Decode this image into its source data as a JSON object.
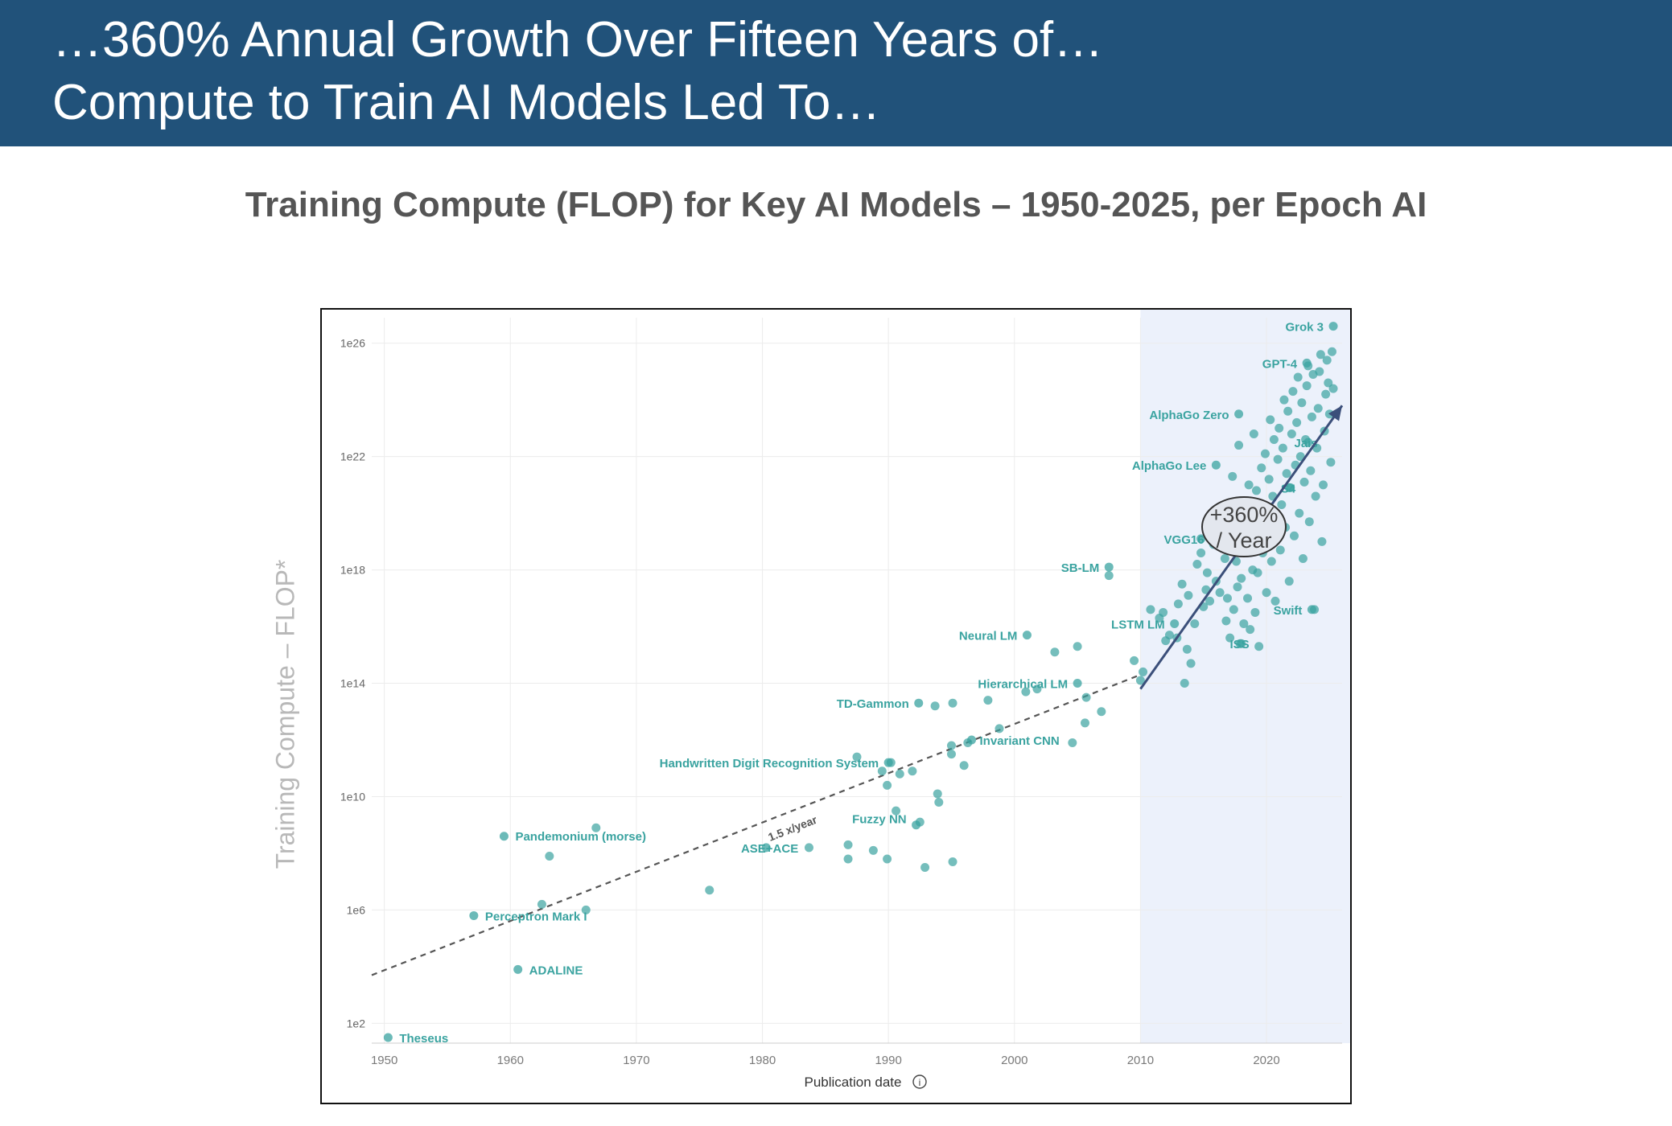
{
  "header": {
    "line1": "…360% Annual Growth Over Fifteen Years of…",
    "line2": "Compute to Train AI Models Led To…"
  },
  "subtitle": "Training Compute (FLOP) for Key AI Models – 1950-2025, per Epoch AI",
  "colors": {
    "banner": "#21527a",
    "point": "#3aa3a0",
    "highlight_region": "#ecf1fb",
    "growth_arrow": "#3b4f7a"
  },
  "chart_data": {
    "type": "scatter",
    "ylabel": "Training Compute – FLOP*",
    "xlabel": "Publication date",
    "y_scale": "log",
    "xlim": [
      1949,
      2026
    ],
    "ylim_log10": [
      1.3,
      26.9
    ],
    "x_ticks": [
      {
        "value": 1950,
        "label": "1950"
      },
      {
        "value": 1960,
        "label": "1960"
      },
      {
        "value": 1970,
        "label": "1970"
      },
      {
        "value": 1980,
        "label": "1980"
      },
      {
        "value": 1990,
        "label": "1990"
      },
      {
        "value": 2000,
        "label": "2000"
      },
      {
        "value": 2010,
        "label": "2010"
      },
      {
        "value": 2020,
        "label": "2020"
      }
    ],
    "y_ticks": [
      {
        "log10": 26,
        "label": "1e26"
      },
      {
        "log10": 22,
        "label": "1e22"
      },
      {
        "log10": 18,
        "label": "1e18"
      },
      {
        "log10": 14,
        "label": "1e14"
      },
      {
        "log10": 10,
        "label": "1e10"
      },
      {
        "log10": 6,
        "label": "1e6"
      },
      {
        "log10": 2,
        "label": "1e2"
      }
    ],
    "grid": true,
    "highlight_region": {
      "x_from": 2010,
      "x_to": 2026
    },
    "trend_line": {
      "label": "1.5 x/year",
      "from": [
        1949,
        3.7
      ],
      "to": [
        2010,
        14.3
      ]
    },
    "growth_arrow": {
      "from": [
        2010,
        13.8
      ],
      "to": [
        2026,
        23.8
      ]
    },
    "growth_callout": {
      "line1": "+360%",
      "line2": "/ Year"
    },
    "labeled_points": [
      {
        "name": "Theseus",
        "x": 1950.3,
        "log10": 1.5
      },
      {
        "name": "ADALINE",
        "x": 1960.6,
        "log10": 3.9
      },
      {
        "name": "Perceptron Mark I",
        "x": 1957.1,
        "log10": 5.8
      },
      {
        "name": "Pandemonium (morse)",
        "x": 1959.5,
        "log10": 8.6
      },
      {
        "name": "ASE+ACE",
        "x": 1980.3,
        "log10": 8.2
      },
      {
        "name": "Fuzzy NN",
        "x": 1992.2,
        "log10": 9.0
      },
      {
        "name": "Handwritten Digit Recognition System",
        "x": 1990.0,
        "log10": 11.2
      },
      {
        "name": "Invariant CNN",
        "x": 1996.6,
        "log10": 12.0
      },
      {
        "name": "TD-Gammon",
        "x": 1992.4,
        "log10": 13.3
      },
      {
        "name": "Hierarchical LM",
        "x": 2005.0,
        "log10": 14.0
      },
      {
        "name": "Neural LM",
        "x": 2001.0,
        "log10": 15.7
      },
      {
        "name": "LSTM LM",
        "x": 2012.7,
        "log10": 16.1
      },
      {
        "name": "SB-LM",
        "x": 2007.5,
        "log10": 18.1
      },
      {
        "name": "VGG16",
        "x": 2014.8,
        "log10": 19.1
      },
      {
        "name": "AlphaGo Lee",
        "x": 2016.0,
        "log10": 21.7
      },
      {
        "name": "AlphaGo Zero",
        "x": 2017.8,
        "log10": 23.5
      },
      {
        "name": "GPT-4",
        "x": 2023.2,
        "log10": 25.3
      },
      {
        "name": "Grok 3",
        "x": 2025.3,
        "log10": 26.6
      },
      {
        "name": "Swift",
        "x": 2023.6,
        "log10": 16.6
      },
      {
        "name": "ISS",
        "x": 2018.0,
        "log10": 15.4
      },
      {
        "name": "Jais",
        "x": 2023.3,
        "log10": 22.5
      },
      {
        "name": "S4",
        "x": 2021.8,
        "log10": 20.9
      }
    ],
    "points": [
      [
        1962.5,
        6.2
      ],
      [
        1963.1,
        7.9
      ],
      [
        1966.0,
        6.0
      ],
      [
        1966.8,
        8.9
      ],
      [
        1975.8,
        6.7
      ],
      [
        1983.7,
        8.2
      ],
      [
        1986.8,
        7.8
      ],
      [
        1986.8,
        8.3
      ],
      [
        1987.5,
        11.4
      ],
      [
        1988.8,
        8.1
      ],
      [
        1989.5,
        10.9
      ],
      [
        1989.9,
        7.8
      ],
      [
        1989.9,
        10.4
      ],
      [
        1990.2,
        11.2
      ],
      [
        1990.6,
        9.5
      ],
      [
        1990.9,
        10.8
      ],
      [
        1991.9,
        10.9
      ],
      [
        1992.5,
        9.1
      ],
      [
        1992.9,
        7.5
      ],
      [
        1993.7,
        13.2
      ],
      [
        1993.9,
        10.1
      ],
      [
        1994.0,
        9.8
      ],
      [
        1995.0,
        11.8
      ],
      [
        1995.0,
        11.5
      ],
      [
        1995.1,
        7.7
      ],
      [
        1995.1,
        13.3
      ],
      [
        1996.0,
        11.1
      ],
      [
        1996.3,
        11.9
      ],
      [
        1997.9,
        13.4
      ],
      [
        1998.8,
        12.4
      ],
      [
        2000.9,
        13.7
      ],
      [
        2001.8,
        13.8
      ],
      [
        2003.2,
        15.1
      ],
      [
        2004.6,
        11.9
      ],
      [
        2005.0,
        15.3
      ],
      [
        2005.6,
        12.6
      ],
      [
        2005.7,
        13.5
      ],
      [
        2006.9,
        13.0
      ],
      [
        2007.5,
        17.8
      ],
      [
        2009.5,
        14.8
      ],
      [
        2010.0,
        14.1
      ],
      [
        2010.2,
        14.4
      ],
      [
        2010.8,
        16.6
      ],
      [
        2011.5,
        16.3
      ],
      [
        2011.8,
        16.5
      ],
      [
        2012.0,
        15.5
      ],
      [
        2012.3,
        15.7
      ],
      [
        2012.9,
        15.6
      ],
      [
        2013.0,
        16.8
      ],
      [
        2013.3,
        17.5
      ],
      [
        2013.5,
        14.0
      ],
      [
        2013.7,
        15.2
      ],
      [
        2013.8,
        17.1
      ],
      [
        2014.0,
        14.7
      ],
      [
        2014.3,
        16.1
      ],
      [
        2014.5,
        18.2
      ],
      [
        2014.8,
        18.6
      ],
      [
        2015.0,
        16.7
      ],
      [
        2015.2,
        17.3
      ],
      [
        2015.3,
        17.9
      ],
      [
        2015.5,
        16.9
      ],
      [
        2015.8,
        18.9
      ],
      [
        2016.0,
        17.6
      ],
      [
        2016.3,
        17.2
      ],
      [
        2016.5,
        19.3
      ],
      [
        2016.7,
        18.4
      ],
      [
        2016.8,
        16.2
      ],
      [
        2016.9,
        17.0
      ],
      [
        2017.1,
        15.6
      ],
      [
        2017.2,
        19.9
      ],
      [
        2017.3,
        21.3
      ],
      [
        2017.4,
        16.6
      ],
      [
        2017.6,
        18.3
      ],
      [
        2017.7,
        17.4
      ],
      [
        2017.8,
        22.4
      ],
      [
        2017.9,
        15.4
      ],
      [
        2018.0,
        17.7
      ],
      [
        2018.1,
        19.6
      ],
      [
        2018.2,
        16.1
      ],
      [
        2018.3,
        18.8
      ],
      [
        2018.4,
        20.4
      ],
      [
        2018.5,
        17.0
      ],
      [
        2018.6,
        21.0
      ],
      [
        2018.7,
        15.9
      ],
      [
        2018.8,
        19.1
      ],
      [
        2018.9,
        18.0
      ],
      [
        2019.0,
        22.8
      ],
      [
        2019.1,
        16.5
      ],
      [
        2019.2,
        20.8
      ],
      [
        2019.3,
        17.9
      ],
      [
        2019.4,
        15.3
      ],
      [
        2019.5,
        19.4
      ],
      [
        2019.6,
        21.6
      ],
      [
        2019.7,
        18.6
      ],
      [
        2019.8,
        20.1
      ],
      [
        2019.9,
        22.1
      ],
      [
        2020.0,
        17.2
      ],
      [
        2020.1,
        19.0
      ],
      [
        2020.2,
        21.2
      ],
      [
        2020.3,
        23.3
      ],
      [
        2020.4,
        18.3
      ],
      [
        2020.5,
        20.6
      ],
      [
        2020.6,
        22.6
      ],
      [
        2020.7,
        16.9
      ],
      [
        2020.8,
        19.8
      ],
      [
        2020.9,
        21.9
      ],
      [
        2021.0,
        23.0
      ],
      [
        2021.1,
        18.7
      ],
      [
        2021.2,
        20.3
      ],
      [
        2021.3,
        22.3
      ],
      [
        2021.4,
        24.0
      ],
      [
        2021.5,
        19.5
      ],
      [
        2021.6,
        21.4
      ],
      [
        2021.7,
        23.6
      ],
      [
        2021.8,
        17.6
      ],
      [
        2021.9,
        20.9
      ],
      [
        2022.0,
        22.8
      ],
      [
        2022.1,
        24.3
      ],
      [
        2022.2,
        19.2
      ],
      [
        2022.3,
        21.7
      ],
      [
        2022.4,
        23.2
      ],
      [
        2022.5,
        24.8
      ],
      [
        2022.6,
        20.0
      ],
      [
        2022.7,
        22.0
      ],
      [
        2022.8,
        23.9
      ],
      [
        2022.9,
        18.4
      ],
      [
        2023.0,
        21.1
      ],
      [
        2023.1,
        22.6
      ],
      [
        2023.2,
        24.5
      ],
      [
        2023.3,
        25.2
      ],
      [
        2023.4,
        19.7
      ],
      [
        2023.5,
        21.5
      ],
      [
        2023.6,
        23.4
      ],
      [
        2023.7,
        24.9
      ],
      [
        2023.8,
        16.6
      ],
      [
        2023.9,
        20.6
      ],
      [
        2024.0,
        22.3
      ],
      [
        2024.1,
        23.7
      ],
      [
        2024.2,
        25.0
      ],
      [
        2024.3,
        25.6
      ],
      [
        2024.4,
        19.0
      ],
      [
        2024.5,
        21.0
      ],
      [
        2024.6,
        22.9
      ],
      [
        2024.7,
        24.2
      ],
      [
        2024.8,
        25.4
      ],
      [
        2024.9,
        24.6
      ],
      [
        2025.0,
        23.5
      ],
      [
        2025.1,
        21.8
      ],
      [
        2025.2,
        25.7
      ],
      [
        2025.3,
        24.4
      ]
    ]
  }
}
